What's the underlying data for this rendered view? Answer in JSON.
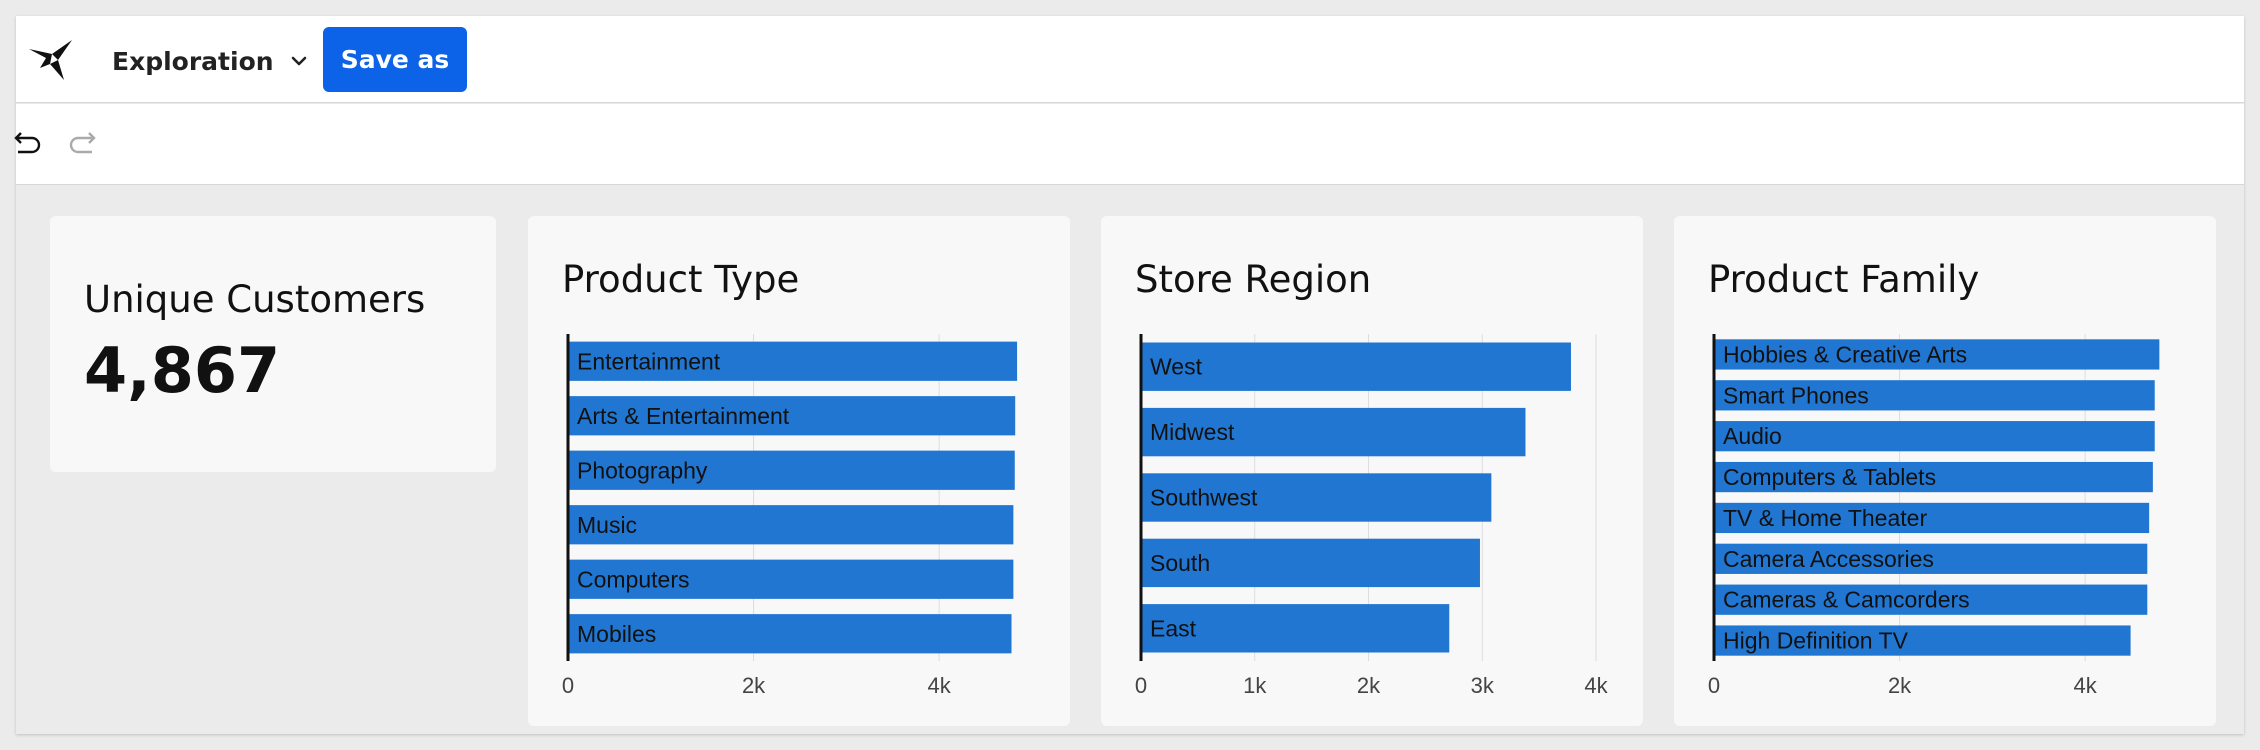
{
  "header": {
    "workbook_title": "Exploration",
    "save_label": "Save as",
    "logo_icon": "bird-logo-icon",
    "menu_icon": "chevron-down-icon"
  },
  "toolbar": {
    "undo_icon": "undo-icon",
    "redo_icon": "redo-icon"
  },
  "colors": {
    "accent": "#0c63e7",
    "bar": "#2176d2",
    "axis": "#111111",
    "grid": "#dddddd"
  },
  "kpi": {
    "title": "Unique Customers",
    "value": "4,867"
  },
  "chart_data": [
    {
      "type": "bar",
      "orientation": "horizontal",
      "title": "Product Type",
      "categories": [
        "Entertainment",
        "Arts & Entertainment",
        "Photography",
        "Music",
        "Computers",
        "Mobiles"
      ],
      "values": [
        4840,
        4820,
        4815,
        4800,
        4800,
        4780
      ],
      "xlim": [
        0,
        4850
      ],
      "xticks": [
        0,
        2000,
        4000
      ],
      "xtick_labels": [
        "0",
        "2k",
        "4k"
      ],
      "grid": true
    },
    {
      "type": "bar",
      "orientation": "horizontal",
      "title": "Store Region",
      "categories": [
        "West",
        "Midwest",
        "Southwest",
        "South",
        "East"
      ],
      "values": [
        3780,
        3380,
        3080,
        2980,
        2710
      ],
      "xlim": [
        0,
        4000
      ],
      "xticks": [
        0,
        1000,
        2000,
        3000,
        4000
      ],
      "xtick_labels": [
        "0",
        "1k",
        "2k",
        "3k",
        "4k"
      ],
      "grid": true
    },
    {
      "type": "bar",
      "orientation": "horizontal",
      "title": "Product Family",
      "categories": [
        "Hobbies & Creative Arts",
        "Smart Phones",
        "Audio",
        "Computers & Tablets",
        "TV & Home Theater",
        "Camera Accessories",
        "Cameras & Camcorders",
        "High Definition TV"
      ],
      "values": [
        4800,
        4750,
        4750,
        4730,
        4690,
        4670,
        4670,
        4490
      ],
      "xlim": [
        0,
        4850
      ],
      "xticks": [
        0,
        2000,
        4000
      ],
      "xtick_labels": [
        "0",
        "2k",
        "4k"
      ],
      "grid": true
    }
  ]
}
